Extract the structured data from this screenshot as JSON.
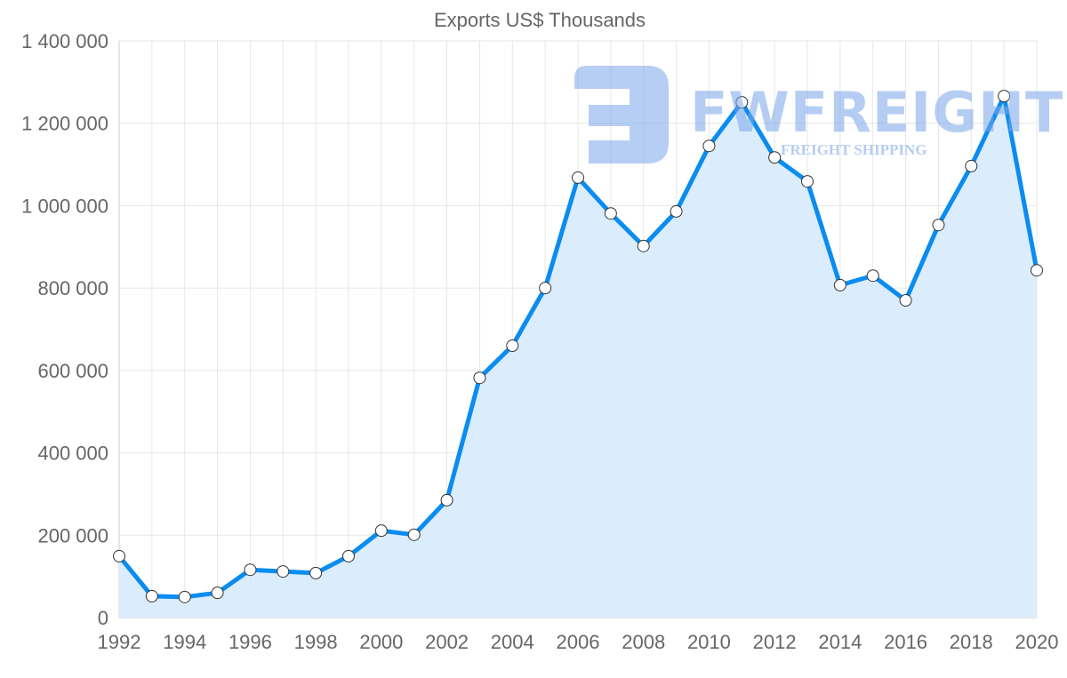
{
  "watermark": {
    "brand": "FWFREIGHT",
    "tagline": "FREIGHT SHIPPING"
  },
  "chart_data": {
    "type": "area",
    "title": "Exports US$ Thousands",
    "xlabel": "",
    "ylabel": "",
    "x": [
      1992,
      1993,
      1994,
      1995,
      1996,
      1997,
      1998,
      1999,
      2000,
      2001,
      2002,
      2003,
      2004,
      2005,
      2006,
      2007,
      2008,
      2009,
      2010,
      2011,
      2012,
      2013,
      2014,
      2015,
      2016,
      2017,
      2018,
      2019,
      2020
    ],
    "values": [
      149000,
      52000,
      50000,
      60000,
      116000,
      112000,
      108000,
      149000,
      211000,
      201000,
      285000,
      582000,
      660000,
      800000,
      1068000,
      981000,
      902000,
      986000,
      1145000,
      1251000,
      1117000,
      1059000,
      807000,
      830000,
      770000,
      953000,
      1096000,
      1266000,
      843000
    ],
    "xticks": [
      "1992",
      "1994",
      "1996",
      "1998",
      "2000",
      "2002",
      "2004",
      "2006",
      "2008",
      "2010",
      "2012",
      "2014",
      "2016",
      "2018",
      "2020"
    ],
    "yticks": [
      "0",
      "200 000",
      "400 000",
      "600 000",
      "800 000",
      "1 000 000",
      "1 200 000",
      "1 400 000"
    ],
    "ylim": [
      0,
      1400000
    ],
    "xlim": [
      1992,
      2020
    ],
    "grid": true,
    "colors": {
      "line": "#0a8cf0",
      "fill": "#d9ebfc",
      "grid": "#e6e6e6",
      "text": "#666666"
    }
  }
}
